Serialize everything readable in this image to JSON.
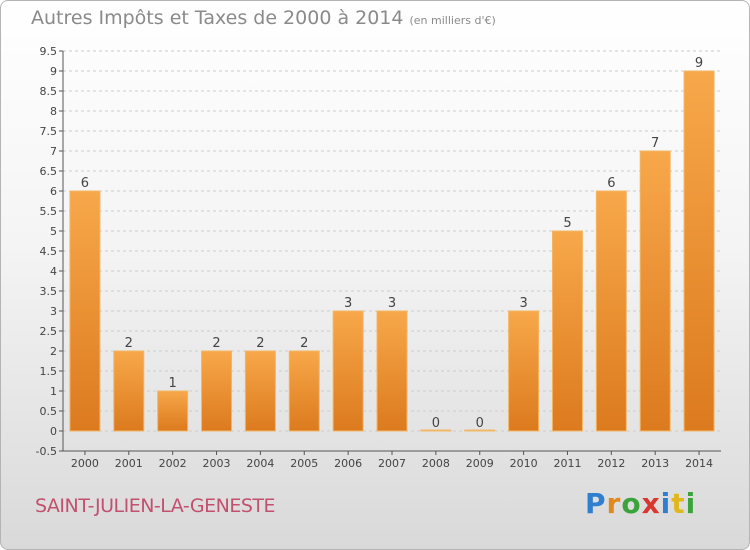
{
  "header": {
    "title": "Autres Impôts et Taxes de 2000 à 2014",
    "subtitle": "(en milliers d'€)"
  },
  "footer": {
    "commune": "SAINT-JULIEN-LA-GENESTE",
    "logo": "Proxiti",
    "logo_colors": [
      "#2e7fd0",
      "#e08a1e",
      "#3aa33a",
      "#d8362e",
      "#2e7fd0",
      "#e0b81e",
      "#3aa33a"
    ]
  },
  "colors": {
    "bar_top": "#f7a84a",
    "bar_bottom": "#dc7a1e",
    "bar_edge": "#f2b668",
    "axis": "#555555",
    "grid": "#cccccc",
    "text": "#444444"
  },
  "chart_data": {
    "type": "bar",
    "title": "Autres Impôts et Taxes de 2000 à 2014",
    "subtitle": "(en milliers d'€)",
    "categories": [
      "2000",
      "2001",
      "2002",
      "2003",
      "2004",
      "2005",
      "2006",
      "2007",
      "2008",
      "2009",
      "2010",
      "2011",
      "2012",
      "2013",
      "2014"
    ],
    "values": [
      6,
      2,
      1,
      2,
      2,
      2,
      3,
      3,
      0,
      0,
      3,
      5,
      6,
      7,
      9
    ],
    "data_labels": [
      "6",
      "2",
      "1",
      "2",
      "2",
      "2",
      "3",
      "3",
      "0",
      "0",
      "3",
      "5",
      "6",
      "7",
      "9"
    ],
    "ylim": [
      -0.5,
      9.5
    ],
    "yticks": [
      -0.5,
      0,
      0.5,
      1,
      1.5,
      2,
      2.5,
      3,
      3.5,
      4,
      4.5,
      5,
      5.5,
      6,
      6.5,
      7,
      7.5,
      8,
      8.5,
      9,
      9.5
    ],
    "ytick_labels": [
      "-0.5",
      "0",
      "0.5",
      "1",
      "1.5",
      "2",
      "2.5",
      "3",
      "3.5",
      "4",
      "4.5",
      "5",
      "5.5",
      "6",
      "6.5",
      "7",
      "7.5",
      "8",
      "8.5",
      "9",
      "9.5"
    ],
    "grid": "horizontal"
  }
}
